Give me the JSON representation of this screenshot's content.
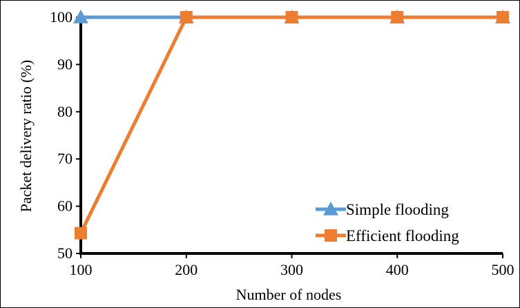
{
  "chart_data": {
    "type": "line",
    "title": "",
    "xlabel": "Number of nodes",
    "ylabel": "Packet delivery ratio (%)",
    "x": [
      100,
      200,
      300,
      400,
      500
    ],
    "xlim": [
      100,
      500
    ],
    "ylim": [
      50,
      100
    ],
    "y_ticks": [
      50,
      60,
      70,
      80,
      90,
      100
    ],
    "x_ticks": [
      100,
      200,
      300,
      400,
      500
    ],
    "grid": false,
    "legend_position": "bottom-right",
    "series": [
      {
        "name": "Simple flooding",
        "values": [
          100,
          100,
          100,
          100,
          100
        ],
        "color": "#5b9bd5",
        "marker": "triangle"
      },
      {
        "name": "Efficient flooding",
        "values": [
          54.3,
          100,
          100,
          100,
          100
        ],
        "color": "#ed7d31",
        "marker": "square"
      }
    ]
  }
}
